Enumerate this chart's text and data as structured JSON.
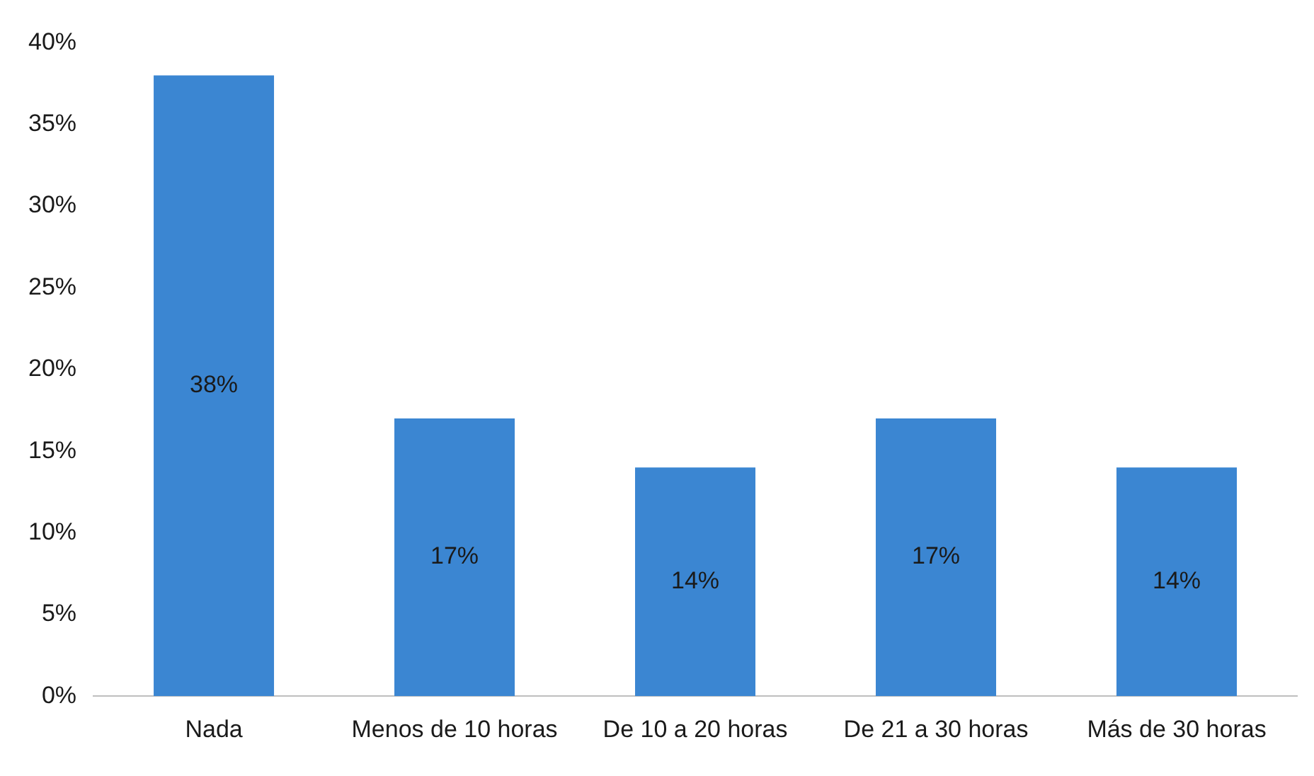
{
  "chart_data": {
    "type": "bar",
    "categories": [
      "Nada",
      "Menos de 10 horas",
      "De 10 a 20 horas",
      "De 21 a 30 horas",
      "Más de 30 horas"
    ],
    "values": [
      38,
      17,
      14,
      17,
      14
    ],
    "value_labels": [
      "38%",
      "17%",
      "14%",
      "17%",
      "14%"
    ],
    "color": "#3b86d2",
    "ylim": [
      0,
      40
    ],
    "yticks": [
      {
        "value": 0,
        "label": "0%"
      },
      {
        "value": 5,
        "label": "5%"
      },
      {
        "value": 10,
        "label": "10%"
      },
      {
        "value": 15,
        "label": "15%"
      },
      {
        "value": 20,
        "label": "20%"
      },
      {
        "value": 25,
        "label": "25%"
      },
      {
        "value": 30,
        "label": "30%"
      },
      {
        "value": 35,
        "label": "35%"
      },
      {
        "value": 40,
        "label": "40%"
      }
    ],
    "grid": false,
    "legend": false
  }
}
